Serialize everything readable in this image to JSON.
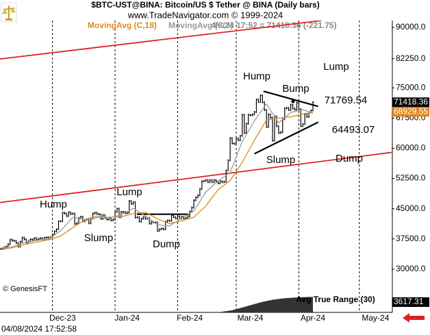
{
  "header": {
    "title": "$BTC-UST@BINA:  Bitcoin/US $ Tether @ BINA  (Daily bars)",
    "site": "www.TradeNavigator.com © 1999-2024",
    "quote": "4/8/24 17:52 = 71418.36 (-221.75)",
    "copyright": "© GenesisFT",
    "timestamp": "04/08/2024 17:52:58"
  },
  "chart_data": {
    "type": "stock",
    "xlim": [
      0,
      194
    ],
    "xticks": [
      {
        "value": 31,
        "label": "Dec-23"
      },
      {
        "value": 63,
        "label": "Jan-24"
      },
      {
        "value": 94,
        "label": "Feb-24"
      },
      {
        "value": 124,
        "label": "Mar-24"
      },
      {
        "value": 155,
        "label": "Apr-24"
      },
      {
        "value": 186,
        "label": "May-24"
      }
    ],
    "month_lines": [
      26,
      57,
      88,
      117,
      148,
      178
    ],
    "ylim": [
      23350,
      91700
    ],
    "yticks": [
      {
        "value": 90000,
        "label": "90000.0"
      },
      {
        "value": 82250,
        "label": "82250.0"
      },
      {
        "value": 75000,
        "label": "75000.0"
      },
      {
        "value": 67500,
        "label": "67500.0"
      },
      {
        "value": 60000,
        "label": "60000.0"
      },
      {
        "value": 52500,
        "label": "52500.0"
      },
      {
        "value": 45000,
        "label": "45000.0"
      },
      {
        "value": 37500,
        "label": "37500.0"
      },
      {
        "value": 30000,
        "label": "30000.0"
      }
    ],
    "price": {
      "color": "#000000",
      "values": [
        35000,
        35100,
        35400,
        35600,
        36200,
        37300,
        37100,
        37000,
        36500,
        35600,
        36800,
        37800,
        37400,
        36600,
        36900,
        37400,
        37300,
        37700,
        37300,
        37500,
        37700,
        37400,
        37800,
        37900,
        37700,
        38000,
        38600,
        39400,
        39900,
        41900,
        41900,
        44000,
        43800,
        43200,
        44100,
        43700,
        43800,
        41200,
        41400,
        42700,
        43000,
        41900,
        42200,
        42300,
        41400,
        42600,
        43800,
        44000,
        43700,
        43600,
        42500,
        43400,
        42700,
        42300,
        42600,
        42100,
        42300,
        44200,
        45000,
        42900,
        44200,
        44200,
        43900,
        44000,
        46900,
        46200,
        46600,
        42800,
        42900,
        41800,
        42500,
        42900,
        42500,
        42700,
        41300,
        41700,
        41600,
        41600,
        39500,
        39900,
        40100,
        39900,
        41800,
        42100,
        42000,
        43300,
        42900,
        42600,
        43100,
        42600,
        43000,
        42600,
        42700,
        43100,
        44300,
        45300,
        47100,
        47800,
        48300,
        49900,
        51800,
        51900,
        52100,
        51600,
        52100,
        51600,
        52100,
        51800,
        51300,
        51800,
        51600,
        51700,
        54500,
        57000,
        62500,
        61200,
        61100,
        62400,
        62000,
        63100,
        68300,
        63800,
        66100,
        68300,
        68200,
        68400,
        69000,
        72100,
        71500,
        73100,
        71400,
        69500,
        65300,
        68400,
        67600,
        61900,
        67900,
        65500,
        63800,
        64000,
        67200,
        69900,
        70000,
        69500,
        70800,
        69900,
        69600,
        71300,
        69700,
        65500,
        66000,
        68500,
        67800,
        68900,
        69400,
        71418.36
      ]
    },
    "series": [
      {
        "name": "MovingAvg (C,18)",
        "color": "#e08a1e",
        "x": [
          0,
          6,
          12,
          18,
          24,
          30,
          36,
          42,
          48,
          54,
          60,
          66,
          72,
          78,
          84,
          90,
          96,
          102,
          108,
          114,
          120,
          126,
          132,
          138,
          144,
          150,
          155
        ],
        "values": [
          34800,
          35300,
          36100,
          36700,
          37300,
          38200,
          40300,
          42200,
          42800,
          42900,
          43000,
          43800,
          44100,
          42500,
          41300,
          42000,
          42900,
          45700,
          49700,
          52000,
          56500,
          62000,
          67000,
          67500,
          67800,
          68500,
          68929.55
        ]
      },
      {
        "name": "MovingAvg (C,8)",
        "color": "#9a9a9a",
        "x": [
          0,
          6,
          12,
          18,
          24,
          30,
          36,
          42,
          48,
          54,
          60,
          66,
          72,
          78,
          84,
          90,
          96,
          102,
          108,
          114,
          120,
          126,
          132,
          138,
          144,
          150,
          155
        ],
        "values": [
          35200,
          35500,
          36600,
          37100,
          37500,
          39500,
          42800,
          42400,
          43100,
          42700,
          43500,
          45100,
          43200,
          41000,
          40700,
          42700,
          44400,
          49200,
          51900,
          54000,
          61700,
          66800,
          71000,
          66300,
          68900,
          69600,
          68700
        ]
      }
    ],
    "trendlines": [
      {
        "color": "#e02020",
        "points": [
          [
            0,
            82160
          ],
          [
            159.3,
            91700
          ]
        ]
      },
      {
        "color": "#e02020",
        "points": [
          [
            0,
            46530
          ],
          [
            194,
            58980
          ]
        ]
      },
      {
        "color": "#000000",
        "points": [
          [
            67.8,
            43640
          ],
          [
            94.2,
            43640
          ]
        ]
      },
      {
        "color": "#000000",
        "points": [
          [
            130.5,
            74150
          ],
          [
            157.6,
            70400
          ]
        ]
      },
      {
        "color": "#000000",
        "points": [
          [
            126,
            58640
          ],
          [
            157.6,
            66480
          ]
        ]
      }
    ],
    "annotations": [
      "Hump",
      "Slump",
      "Lump",
      "Dump",
      "Hump",
      "Bump",
      "Lump",
      "Slump",
      "Dump",
      "71769.54",
      "64493.07"
    ],
    "atr": {
      "name": "Avg True Range (30)",
      "color": "#333333",
      "x": [
        110,
        115,
        120,
        125,
        130,
        135,
        140,
        145,
        150,
        155
      ],
      "values": [
        1500,
        1700,
        2100,
        2500,
        2900,
        3200,
        3400,
        3500,
        3580,
        3617.31
      ],
      "ylim": [
        1400,
        3750
      ]
    }
  }
}
